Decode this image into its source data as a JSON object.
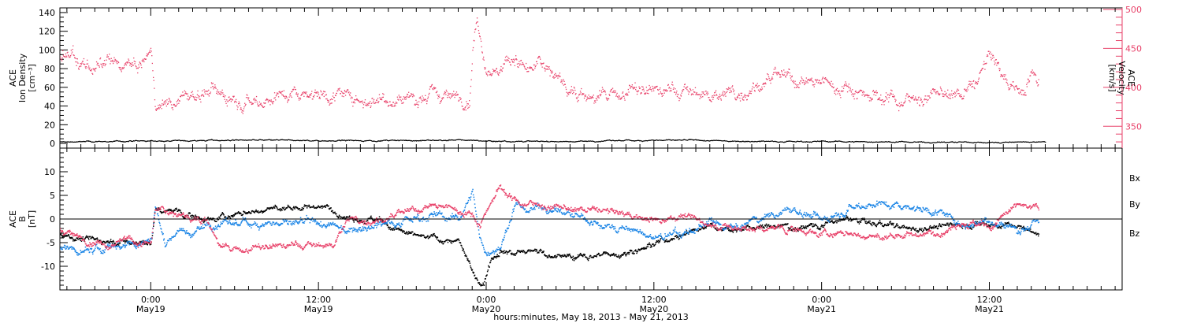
{
  "colors": {
    "pink": "#e8426a",
    "blue": "#1d86e6",
    "black": "#000000"
  },
  "footer": "hours:minutes, May 18, 2013 - May 21, 2013",
  "x_ticks": [
    {
      "time": "0:00",
      "date": "May19",
      "hour": 24
    },
    {
      "time": "12:00",
      "date": "May19",
      "hour": 36
    },
    {
      "time": "0:00",
      "date": "May20",
      "hour": 48
    },
    {
      "time": "12:00",
      "date": "May20",
      "hour": 60
    },
    {
      "time": "0:00",
      "date": "May21",
      "hour": 72
    },
    {
      "time": "12:00",
      "date": "May21",
      "hour": 84
    }
  ],
  "x_range_hours": [
    17.5,
    93.5
  ],
  "chart_data": [
    {
      "type": "scatter",
      "title": "",
      "ylabel_left": [
        "ACE",
        "Ion Density",
        "[cm⁻³]"
      ],
      "ylabel_right": [
        "ACE",
        "Velocity",
        "[km/s]"
      ],
      "left_ylim": [
        -5,
        145
      ],
      "left_ticks": [
        "0",
        "20",
        "40",
        "60",
        "80",
        "100",
        "120",
        "140"
      ],
      "left_tick_values": [
        0,
        20,
        40,
        60,
        80,
        100,
        120,
        140
      ],
      "right_ylim": [
        322,
        502
      ],
      "right_ticks": [
        "350",
        "400",
        "450",
        "500"
      ],
      "right_tick_values": [
        350,
        400,
        450,
        500
      ],
      "series": [
        {
          "color": "black",
          "axis": "left",
          "noise": 0.7,
          "x": [
            17.5,
            24,
            30,
            36,
            42,
            47,
            48,
            54,
            60,
            66,
            72,
            78,
            84,
            88
          ],
          "y": [
            2,
            3,
            4,
            3.5,
            3.5,
            4,
            3,
            2.5,
            4,
            3,
            2.5,
            2,
            1.5,
            2
          ]
        },
        {
          "color": "pink",
          "axis": "right",
          "noise": 10,
          "x": [
            17.5,
            18.5,
            20,
            22,
            23,
            24,
            24.3,
            26,
            28,
            30,
            32,
            34,
            36,
            38,
            40,
            42,
            44,
            46,
            46.8,
            47,
            47.3,
            48,
            49,
            50,
            51,
            52,
            54,
            56,
            58,
            60,
            62,
            64,
            66,
            68,
            70,
            72,
            74,
            76,
            78,
            80,
            82,
            83,
            84,
            84.5,
            85,
            86,
            86.5,
            87,
            87.5
          ],
          "y": [
            440,
            435,
            425,
            430,
            425,
            440,
            380,
            385,
            395,
            390,
            385,
            395,
            395,
            388,
            386,
            388,
            390,
            388,
            390,
            450,
            490,
            430,
            420,
            440,
            420,
            430,
            400,
            385,
            395,
            395,
            395,
            390,
            395,
            410,
            410,
            405,
            400,
            390,
            385,
            390,
            390,
            405,
            440,
            430,
            410,
            400,
            395,
            420,
            415
          ]
        }
      ]
    },
    {
      "type": "scatter",
      "title": "",
      "ylabel_left": [
        "ACE",
        "B",
        "[nT]"
      ],
      "left_ylim": [
        -15,
        15
      ],
      "left_ticks": [
        "-10",
        "-5",
        "0",
        "5",
        "10"
      ],
      "left_tick_values": [
        -10,
        -5,
        0,
        5,
        10
      ],
      "zero_line": true,
      "legend": [
        {
          "name": "Bx",
          "color": "black"
        },
        {
          "name": "By",
          "color": "blue"
        },
        {
          "name": "Bz",
          "color": "pink"
        }
      ],
      "series": [
        {
          "name": "Bx",
          "color": "black",
          "noise": 0.7,
          "x": [
            17.5,
            19,
            21,
            23,
            24,
            24.3,
            26,
            28,
            30,
            32,
            34,
            36,
            38,
            40,
            42,
            44,
            46,
            46.8,
            47.2,
            47.8,
            48.3,
            49,
            50,
            52,
            54,
            56,
            58,
            60,
            62,
            64,
            66,
            68,
            70,
            72,
            74,
            76,
            78,
            80,
            82,
            84,
            86,
            87.5
          ],
          "y": [
            -3,
            -4,
            -4.5,
            -5,
            -5,
            2,
            1.5,
            0,
            1,
            2,
            2.5,
            3,
            1,
            0,
            -3,
            -4,
            -4.5,
            -10,
            -13,
            -13.5,
            -8,
            -6,
            -7,
            -7,
            -8,
            -7.5,
            -7,
            -5,
            -3,
            -1,
            -2,
            -1.5,
            -1.5,
            -1,
            0,
            -1,
            -2,
            -1.5,
            -1,
            -1,
            -1.5,
            -3
          ]
        },
        {
          "name": "By",
          "color": "blue",
          "noise": 0.9,
          "x": [
            17.5,
            19,
            21,
            22,
            23,
            24,
            24.3,
            25,
            26,
            27,
            28,
            30,
            32,
            34,
            36,
            38,
            40,
            42,
            44,
            46,
            47,
            47.5,
            48,
            49,
            50,
            51,
            52,
            54,
            56,
            58,
            60,
            62,
            64,
            66,
            68,
            70,
            72,
            74,
            76,
            78,
            80,
            82,
            84,
            86,
            87.5
          ],
          "y": [
            -6,
            -7,
            -6,
            -5,
            -5,
            -4,
            3,
            -5,
            -2,
            -3,
            -1,
            -1,
            -0.5,
            -1,
            -1,
            -2,
            -1,
            0,
            1,
            0,
            6,
            -4,
            -7,
            -6,
            3,
            2,
            3,
            1,
            -1,
            -2,
            -4,
            -3,
            -1,
            -2,
            1,
            2,
            0,
            3,
            3.5,
            3,
            2,
            -1,
            0,
            -2,
            -1
          ]
        },
        {
          "name": "Bz",
          "color": "pink",
          "noise": 0.8,
          "x": [
            17.5,
            19,
            21,
            22,
            23,
            24,
            24.3,
            26,
            28,
            29,
            30,
            32,
            34,
            36,
            37,
            38,
            40,
            42,
            44,
            46,
            47,
            47.5,
            48,
            48.5,
            49,
            50,
            52,
            54,
            56,
            58,
            60,
            62,
            64,
            66,
            68,
            70,
            72,
            74,
            76,
            78,
            80,
            82,
            84,
            86,
            87.5
          ],
          "y": [
            -2,
            -4,
            -5,
            -4,
            -5,
            -5,
            2,
            1,
            0,
            -6,
            -6.5,
            -6,
            -5.5,
            -5.5,
            -5.5,
            0,
            0,
            1,
            3,
            2,
            1,
            -1,
            2,
            5,
            7,
            4,
            3,
            2,
            2,
            1,
            0,
            1,
            -1,
            -2,
            -2,
            -2,
            -3,
            -3,
            -4,
            -3,
            -3,
            0,
            -2,
            3,
            2
          ]
        }
      ]
    }
  ]
}
